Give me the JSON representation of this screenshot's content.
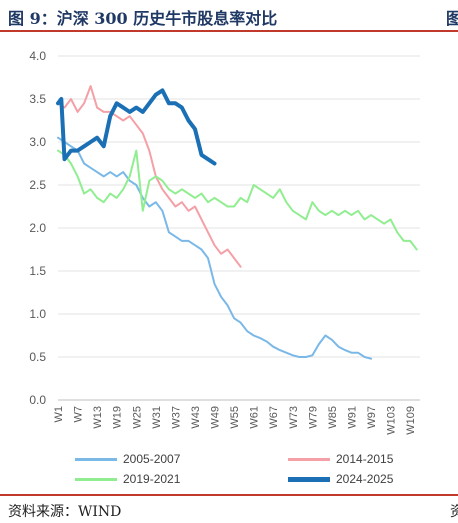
{
  "header": {
    "title": "图 9：沪深 300 历史牛市股息率对比",
    "title_cut": "图"
  },
  "footer": {
    "source": "资料来源：WIND",
    "cut": "资"
  },
  "chart_data": {
    "type": "line",
    "title": "",
    "xlabel": "",
    "ylabel": "",
    "ylim": [
      0,
      4
    ],
    "yticks": [
      "0.0",
      "0.5",
      "1.0",
      "1.5",
      "2.0",
      "2.5",
      "3.0",
      "3.5",
      "4.0"
    ],
    "xticks": [
      "W1",
      "W7",
      "W13",
      "W19",
      "W25",
      "W31",
      "W37",
      "W43",
      "W49",
      "W55",
      "W61",
      "W67",
      "W73",
      "W79",
      "W85",
      "W91",
      "W97",
      "W103",
      "W109"
    ],
    "xtick_positions": [
      1,
      7,
      13,
      19,
      25,
      31,
      37,
      43,
      49,
      55,
      61,
      67,
      73,
      79,
      85,
      91,
      97,
      103,
      109
    ],
    "xlim": [
      1,
      112
    ],
    "grid": "horizontal",
    "legend_position": "bottom",
    "series": [
      {
        "name": "2005-2007",
        "color": "#7ab8e8",
        "width": 2,
        "x": [
          1,
          3,
          5,
          7,
          9,
          11,
          13,
          15,
          17,
          19,
          21,
          23,
          25,
          27,
          29,
          31,
          33,
          35,
          37,
          39,
          41,
          43,
          45,
          47,
          49,
          51,
          53,
          55,
          57,
          59,
          61,
          63,
          65,
          67,
          69,
          71,
          73,
          75,
          77,
          79,
          81,
          83,
          85,
          87,
          89,
          91,
          93,
          95,
          97
        ],
        "y": [
          3.05,
          3.0,
          2.95,
          2.9,
          2.75,
          2.7,
          2.65,
          2.6,
          2.65,
          2.6,
          2.65,
          2.55,
          2.5,
          2.35,
          2.25,
          2.3,
          2.2,
          1.95,
          1.9,
          1.85,
          1.85,
          1.8,
          1.75,
          1.65,
          1.35,
          1.2,
          1.1,
          0.95,
          0.9,
          0.8,
          0.75,
          0.72,
          0.68,
          0.62,
          0.58,
          0.55,
          0.52,
          0.5,
          0.5,
          0.52,
          0.65,
          0.75,
          0.7,
          0.62,
          0.58,
          0.55,
          0.55,
          0.5,
          0.48
        ]
      },
      {
        "name": "2014-2015",
        "color": "#f4a0a6",
        "width": 2,
        "x": [
          1,
          3,
          5,
          7,
          9,
          11,
          13,
          15,
          17,
          19,
          21,
          23,
          25,
          27,
          29,
          31,
          33,
          35,
          37,
          39,
          41,
          43,
          45,
          47,
          49,
          51,
          53,
          55,
          57
        ],
        "y": [
          3.45,
          3.4,
          3.5,
          3.35,
          3.45,
          3.65,
          3.4,
          3.35,
          3.35,
          3.3,
          3.25,
          3.3,
          3.2,
          3.1,
          2.9,
          2.6,
          2.45,
          2.35,
          2.25,
          2.3,
          2.2,
          2.25,
          2.1,
          1.95,
          1.8,
          1.7,
          1.75,
          1.65,
          1.55
        ]
      },
      {
        "name": "2019-2021",
        "color": "#90ee90",
        "width": 2,
        "x": [
          1,
          3,
          5,
          7,
          9,
          11,
          13,
          15,
          17,
          19,
          21,
          23,
          25,
          27,
          29,
          31,
          33,
          35,
          37,
          39,
          41,
          43,
          45,
          47,
          49,
          51,
          53,
          55,
          57,
          59,
          61,
          63,
          65,
          67,
          69,
          71,
          73,
          75,
          77,
          79,
          81,
          83,
          85,
          87,
          89,
          91,
          93,
          95,
          97,
          99,
          101,
          103,
          105,
          107,
          109,
          111
        ],
        "y": [
          2.9,
          2.85,
          2.75,
          2.6,
          2.4,
          2.45,
          2.35,
          2.3,
          2.4,
          2.35,
          2.45,
          2.6,
          2.9,
          2.2,
          2.55,
          2.6,
          2.55,
          2.45,
          2.4,
          2.45,
          2.4,
          2.35,
          2.4,
          2.3,
          2.35,
          2.3,
          2.25,
          2.25,
          2.35,
          2.3,
          2.5,
          2.45,
          2.4,
          2.35,
          2.45,
          2.3,
          2.2,
          2.15,
          2.1,
          2.3,
          2.2,
          2.15,
          2.2,
          2.15,
          2.2,
          2.15,
          2.2,
          2.1,
          2.15,
          2.1,
          2.05,
          2.1,
          1.95,
          1.85,
          1.85,
          1.75
        ]
      },
      {
        "name": "2024-2025",
        "color": "#1a6fb5",
        "width": 4,
        "x": [
          1,
          2,
          3,
          5,
          7,
          9,
          11,
          13,
          15,
          17,
          19,
          21,
          23,
          25,
          27,
          29,
          31,
          33,
          35,
          37,
          39,
          41,
          43,
          45,
          47,
          49
        ],
        "y": [
          3.45,
          3.5,
          2.8,
          2.9,
          2.9,
          2.95,
          3.0,
          3.05,
          2.95,
          3.3,
          3.45,
          3.4,
          3.35,
          3.4,
          3.35,
          3.45,
          3.55,
          3.6,
          3.45,
          3.45,
          3.4,
          3.25,
          3.15,
          2.85,
          2.8,
          2.75
        ]
      }
    ]
  }
}
